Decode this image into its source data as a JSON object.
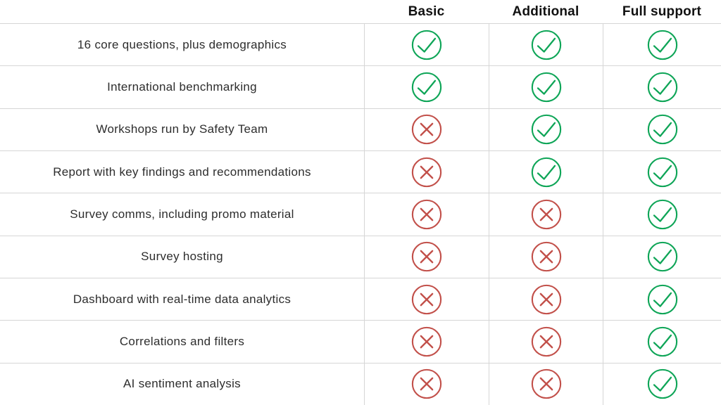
{
  "chart_data": {
    "type": "table",
    "title": "",
    "columns": [
      "",
      "Basic",
      "Additional",
      "Full support"
    ],
    "rows": [
      {
        "feature": "16 core questions, plus demographics",
        "values": [
          "check",
          "check",
          "check"
        ]
      },
      {
        "feature": "International benchmarking",
        "values": [
          "check",
          "check",
          "check"
        ]
      },
      {
        "feature": "Workshops run by Safety Team",
        "values": [
          "cross",
          "check",
          "check"
        ]
      },
      {
        "feature": "Report with key findings and recommendations",
        "values": [
          "cross",
          "check",
          "check"
        ]
      },
      {
        "feature": "Survey comms, including promo material",
        "values": [
          "cross",
          "cross",
          "check"
        ]
      },
      {
        "feature": "Survey hosting",
        "values": [
          "cross",
          "cross",
          "check"
        ]
      },
      {
        "feature": "Dashboard with real-time data analytics",
        "values": [
          "cross",
          "cross",
          "check"
        ]
      },
      {
        "feature": "Correlations and filters",
        "values": [
          "cross",
          "cross",
          "check"
        ]
      },
      {
        "feature": "AI sentiment analysis",
        "values": [
          "cross",
          "cross",
          "check"
        ]
      }
    ],
    "value_legend": {
      "check": "included",
      "cross": "not included"
    },
    "layout": {
      "grid": "on",
      "header_position": "top",
      "label_column_position": "left"
    }
  },
  "icons": {
    "check": {
      "semantic": "check-circle-icon",
      "color": "#0ea557"
    },
    "cross": {
      "semantic": "cross-circle-icon",
      "color": "#c2504a"
    }
  },
  "style": {
    "grid_line_color": "#d6d6d6",
    "header_text_color": "#111111",
    "label_text_color": "#2d2d2d",
    "background_color": "#ffffff"
  }
}
